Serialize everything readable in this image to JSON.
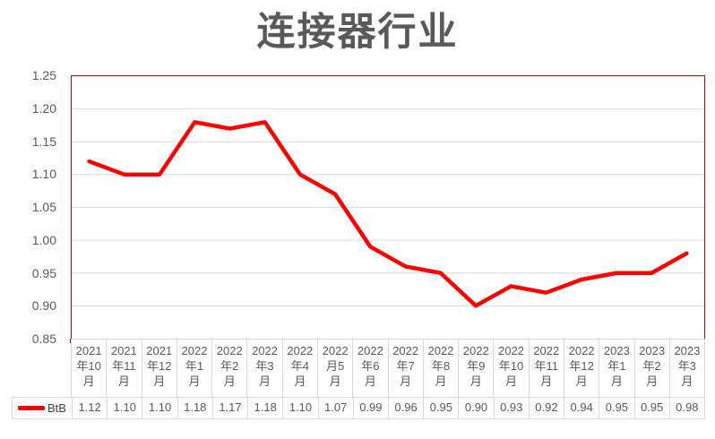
{
  "page": {
    "background": "#FFFFFF"
  },
  "chart_data": {
    "type": "line",
    "title": "连接器行业",
    "categories": [
      "2021年10月",
      "2021年11月",
      "2021年12月",
      "2022年1月",
      "2022年2月",
      "2022年3月",
      "2022年4月",
      "2022月5月",
      "2022年6月",
      "2022年7月",
      "2022年8月",
      "2022年9月",
      "2022年10月",
      "2022年11月",
      "2022年12月",
      "2023年1月",
      "2023年2月",
      "2023年3月"
    ],
    "categories_display": [
      "2021\n年10\n月",
      "2021\n年11\n月",
      "2021\n年12\n月",
      "2022\n年1\n月",
      "2022\n年2\n月",
      "2022\n年3\n月",
      "2022\n年4\n月",
      "2022\n月5\n月",
      "2022\n年6\n月",
      "2022\n年7\n月",
      "2022\n年8\n月",
      "2022\n年9\n月",
      "2022\n年10\n月",
      "2022\n年11\n月",
      "2022\n年12\n月",
      "2023\n年1\n月",
      "2023\n年2\n月",
      "2023\n年3\n月"
    ],
    "series": [
      {
        "name": "BtB",
        "color": "#FF0000",
        "values": [
          1.12,
          1.1,
          1.1,
          1.18,
          1.17,
          1.18,
          1.1,
          1.07,
          0.99,
          0.96,
          0.95,
          0.9,
          0.93,
          0.92,
          0.94,
          0.95,
          0.95,
          0.98
        ],
        "values_display": [
          "1.12",
          "1.10",
          "1.10",
          "1.18",
          "1.17",
          "1.18",
          "1.10",
          "1.07",
          "0.99",
          "0.96",
          "0.95",
          "0.90",
          "0.93",
          "0.92",
          "0.94",
          "0.95",
          "0.95",
          "0.98"
        ]
      }
    ],
    "xlabel": "",
    "ylabel": "",
    "ylim": [
      0.85,
      1.25
    ],
    "yticks": [
      "1.25",
      "1.20",
      "1.15",
      "1.10",
      "1.05",
      "1.00",
      "0.95",
      "0.90",
      "0.85"
    ],
    "grid": true,
    "legend_position": "bottom-data-table",
    "colors": {
      "line": "#FF0000",
      "plot_border": "#C00000",
      "grid": "#D9D9D9",
      "table_border": "#D9D9D9",
      "text": "#595959"
    }
  }
}
